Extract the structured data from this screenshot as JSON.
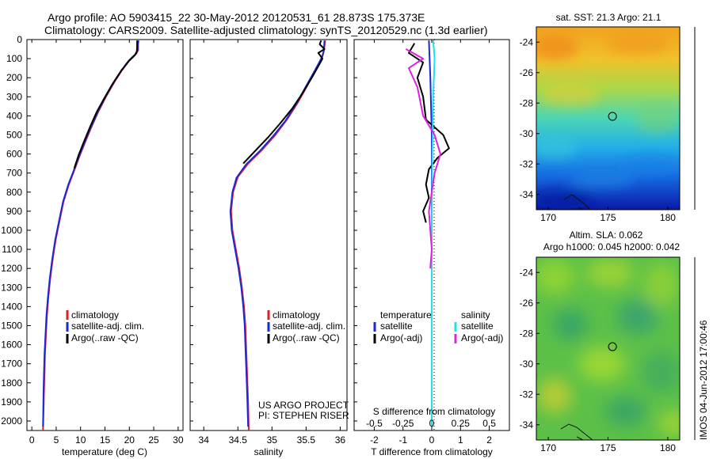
{
  "header": {
    "line1": "Argo profile: AO 5903415_22 30-May-2012 20120531_61 28.873S 175.373E",
    "line2": "Climatology: CARS2009. Satellite-adjusted climatology: synTS_20120529.nc (1.3d earlier)"
  },
  "colors": {
    "climatology": "#e0201c",
    "satellite": "#1a28d8",
    "argo": "#000000",
    "salinity_satellite": "#22e0e8",
    "salinity_argo": "#e020e0"
  },
  "footer": {
    "project_line1": "US ARGO PROJECT",
    "project_line2": "PI: STEPHEN RISER",
    "stamp": "IMOS 04-Jun-2012 17:00:46"
  },
  "chart_data": [
    {
      "type": "line",
      "xlabel": "temperature (deg C)",
      "ylabel": "",
      "xlim": [
        -1,
        31
      ],
      "ylim": [
        2050,
        0
      ],
      "xticks": [
        0,
        5,
        10,
        15,
        20,
        25,
        30
      ],
      "yticks": [
        0,
        100,
        200,
        300,
        400,
        500,
        600,
        700,
        800,
        900,
        1000,
        1100,
        1200,
        1300,
        1400,
        1500,
        1600,
        1700,
        1800,
        1900,
        2000
      ],
      "legend": [
        "climatology",
        "satellite-adj. clim.",
        "Argo(..raw -QC)"
      ],
      "series": [
        {
          "name": "climatology",
          "color_key": "climatology",
          "points": [
            [
              21.9,
              5
            ],
            [
              21.8,
              25
            ],
            [
              21.8,
              55
            ],
            [
              21.2,
              80
            ],
            [
              20.0,
              110
            ],
            [
              18.5,
              160
            ],
            [
              17.0,
              220
            ],
            [
              15.2,
              300
            ],
            [
              13.6,
              380
            ],
            [
              12.2,
              460
            ],
            [
              10.9,
              540
            ],
            [
              9.8,
              610
            ],
            [
              8.8,
              680
            ],
            [
              7.6,
              760
            ],
            [
              6.5,
              850
            ],
            [
              5.7,
              950
            ],
            [
              4.9,
              1050
            ],
            [
              4.3,
              1150
            ],
            [
              3.8,
              1250
            ],
            [
              3.4,
              1350
            ],
            [
              3.1,
              1450
            ],
            [
              2.9,
              1550
            ],
            [
              2.7,
              1650
            ],
            [
              2.6,
              1750
            ],
            [
              2.5,
              1850
            ],
            [
              2.4,
              1950
            ],
            [
              2.3,
              2050
            ]
          ]
        },
        {
          "name": "satellite-adj. clim.",
          "color_key": "satellite",
          "points": [
            [
              21.8,
              5
            ],
            [
              21.7,
              25
            ],
            [
              21.7,
              55
            ],
            [
              21.1,
              80
            ],
            [
              19.9,
              110
            ],
            [
              18.4,
              160
            ],
            [
              16.9,
              220
            ],
            [
              15.1,
              300
            ],
            [
              13.5,
              380
            ],
            [
              12.1,
              460
            ],
            [
              10.8,
              540
            ],
            [
              9.7,
              610
            ],
            [
              8.7,
              680
            ],
            [
              7.5,
              760
            ],
            [
              6.4,
              850
            ],
            [
              5.6,
              950
            ],
            [
              4.8,
              1050
            ],
            [
              4.2,
              1150
            ],
            [
              3.7,
              1250
            ],
            [
              3.3,
              1350
            ],
            [
              3.0,
              1450
            ],
            [
              2.8,
              1550
            ],
            [
              2.6,
              1650
            ],
            [
              2.5,
              1750
            ],
            [
              2.4,
              1850
            ],
            [
              2.35,
              1950
            ],
            [
              2.3,
              2030
            ]
          ]
        },
        {
          "name": "Argo(..raw -QC)",
          "color_key": "argo",
          "points": [
            [
              21.6,
              5
            ],
            [
              21.6,
              40
            ],
            [
              21.5,
              70
            ],
            [
              21.0,
              85
            ],
            [
              19.8,
              115
            ],
            [
              18.3,
              165
            ],
            [
              16.6,
              230
            ],
            [
              14.8,
              310
            ],
            [
              13.3,
              380
            ],
            [
              12.0,
              455
            ],
            [
              10.7,
              535
            ],
            [
              9.6,
              605
            ],
            [
              8.7,
              675
            ]
          ]
        }
      ]
    },
    {
      "type": "line",
      "xlabel": "salinity",
      "ylabel": "",
      "xlim": [
        33.8,
        36.1
      ],
      "ylim": [
        2050,
        0
      ],
      "xticks": [
        34,
        34.5,
        35,
        35.5,
        36
      ],
      "legend": [
        "climatology",
        "satellite-adj. clim.",
        "Argo(..raw -QC)"
      ],
      "series": [
        {
          "name": "climatology",
          "color_key": "climatology",
          "points": [
            [
              35.78,
              5
            ],
            [
              35.76,
              60
            ],
            [
              35.74,
              90
            ],
            [
              35.65,
              150
            ],
            [
              35.52,
              240
            ],
            [
              35.38,
              330
            ],
            [
              35.22,
              420
            ],
            [
              35.05,
              500
            ],
            [
              34.85,
              580
            ],
            [
              34.65,
              650
            ],
            [
              34.5,
              720
            ],
            [
              34.43,
              800
            ],
            [
              34.4,
              900
            ],
            [
              34.42,
              1000
            ],
            [
              34.47,
              1100
            ],
            [
              34.52,
              1200
            ],
            [
              34.56,
              1300
            ],
            [
              34.59,
              1400
            ],
            [
              34.61,
              1500
            ],
            [
              34.62,
              1600
            ],
            [
              34.63,
              1700
            ],
            [
              34.64,
              1800
            ],
            [
              34.65,
              1900
            ],
            [
              34.66,
              2050
            ]
          ]
        },
        {
          "name": "satellite-adj. clim.",
          "color_key": "satellite",
          "points": [
            [
              35.77,
              5
            ],
            [
              35.76,
              60
            ],
            [
              35.73,
              95
            ],
            [
              35.64,
              155
            ],
            [
              35.5,
              245
            ],
            [
              35.36,
              335
            ],
            [
              35.2,
              425
            ],
            [
              35.02,
              505
            ],
            [
              34.82,
              585
            ],
            [
              34.62,
              655
            ],
            [
              34.48,
              725
            ],
            [
              34.42,
              800
            ],
            [
              34.39,
              900
            ],
            [
              34.41,
              1000
            ],
            [
              34.46,
              1100
            ],
            [
              34.51,
              1200
            ],
            [
              34.55,
              1300
            ],
            [
              34.58,
              1400
            ],
            [
              34.6,
              1500
            ],
            [
              34.61,
              1600
            ],
            [
              34.62,
              1700
            ],
            [
              34.63,
              1800
            ],
            [
              34.64,
              1900
            ],
            [
              34.65,
              2030
            ]
          ]
        },
        {
          "name": "Argo(..raw -QC)",
          "color_key": "argo",
          "points": [
            [
              35.72,
              5
            ],
            [
              35.7,
              25
            ],
            [
              35.77,
              50
            ],
            [
              35.68,
              70
            ],
            [
              35.74,
              100
            ],
            [
              35.68,
              140
            ],
            [
              35.6,
              190
            ],
            [
              35.45,
              280
            ],
            [
              35.3,
              360
            ],
            [
              35.12,
              440
            ],
            [
              34.95,
              510
            ],
            [
              34.75,
              585
            ],
            [
              34.58,
              650
            ]
          ]
        }
      ]
    },
    {
      "type": "line",
      "xlabel": "T difference from climatology",
      "ylabel": "",
      "xlim": [
        -2.7,
        2.7
      ],
      "ylim": [
        2050,
        0
      ],
      "xticks": [
        -2,
        -1,
        0,
        1,
        2
      ],
      "secondary_axis_label": "S difference from climatology",
      "secondary_ticks": [
        "-0.5",
        "-0.25",
        "0",
        "0.25",
        "0.5"
      ],
      "legend_titles": [
        "temperature",
        "salinity"
      ],
      "legend": [
        "satellite",
        "Argo(-adj)",
        "satellite",
        "Argo(-adj)"
      ],
      "series": [
        {
          "name": "satellite",
          "group": "temperature",
          "color_key": "satellite",
          "points": [
            [
              -0.1,
              5
            ],
            [
              -0.05,
              200
            ],
            [
              0,
              500
            ],
            [
              0,
              1000
            ],
            [
              0,
              1500
            ],
            [
              0,
              2030
            ]
          ]
        },
        {
          "name": "Argo(-adj)",
          "group": "temperature",
          "color_key": "argo",
          "points": [
            [
              -0.6,
              20
            ],
            [
              -0.8,
              70
            ],
            [
              -0.3,
              120
            ],
            [
              -0.5,
              200
            ],
            [
              -0.3,
              300
            ],
            [
              -0.2,
              420
            ],
            [
              0.4,
              500
            ],
            [
              0.6,
              570
            ],
            [
              0.2,
              620
            ],
            [
              -0.1,
              680
            ],
            [
              -0.2,
              760
            ],
            [
              -0.1,
              830
            ],
            [
              -0.3,
              900
            ],
            [
              -0.2,
              960
            ]
          ]
        },
        {
          "name": "satellite",
          "group": "salinity",
          "color_key": "salinity_satellite",
          "points": [
            [
              0.05,
              5
            ],
            [
              0.1,
              100
            ],
            [
              0.05,
              300
            ],
            [
              0.02,
              600
            ],
            [
              0,
              1000
            ],
            [
              0,
              2030
            ]
          ]
        },
        {
          "name": "Argo(-adj)",
          "group": "salinity",
          "color_key": "salinity_argo",
          "points": [
            [
              -0.9,
              50
            ],
            [
              -0.3,
              100
            ],
            [
              -0.8,
              150
            ],
            [
              -0.5,
              250
            ],
            [
              -0.3,
              400
            ],
            [
              0.1,
              500
            ],
            [
              0.3,
              600
            ],
            [
              0.1,
              700
            ],
            [
              0,
              800
            ],
            [
              -0.1,
              900
            ],
            [
              0,
              1100
            ],
            [
              -0.05,
              1200
            ]
          ]
        }
      ]
    },
    {
      "type": "heatmap",
      "title": "sat. SST: 21.3 Argo: 21.1",
      "xlim": [
        169,
        181
      ],
      "ylim": [
        -35,
        -23
      ],
      "xticks": [
        170,
        175,
        180
      ],
      "yticks": [
        -24,
        -26,
        -28,
        -30,
        -32,
        -34
      ],
      "marker": [
        175.373,
        -28.873
      ]
    },
    {
      "type": "heatmap",
      "title": "Altim. SLA: 0.062",
      "subtitle": "Argo h1000: 0.045 h2000: 0.042",
      "xlim": [
        169,
        181
      ],
      "ylim": [
        -35,
        -23
      ],
      "xticks": [
        170,
        175,
        180
      ],
      "yticks": [
        -24,
        -26,
        -28,
        -30,
        -32,
        -34
      ],
      "marker": [
        175.373,
        -28.873
      ]
    }
  ]
}
